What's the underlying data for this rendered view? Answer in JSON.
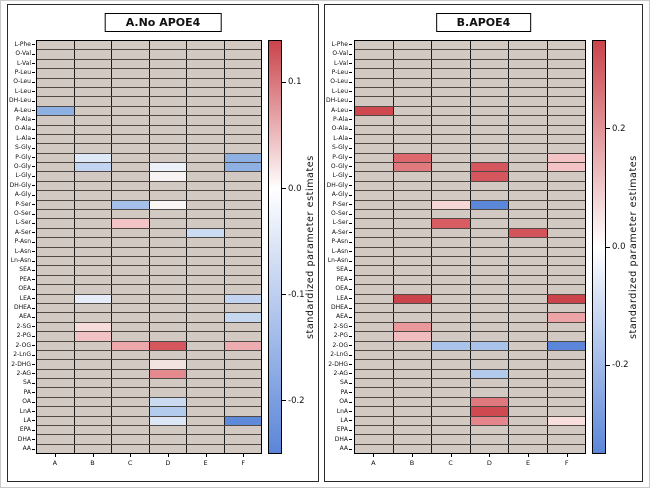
{
  "colors": {
    "cell_base": "#d2cac2",
    "strong_red": "#ca434b",
    "strong_blue": "#5b86d8",
    "grid_line": "#1c1c1c"
  },
  "chart_data": [
    {
      "type": "heatmap",
      "title": "A.No APOE4",
      "x_categories": [
        "A",
        "B",
        "C",
        "D",
        "E",
        "F"
      ],
      "y_categories": [
        "L-Phe",
        "O-Val",
        "L-Val",
        "P-Leu",
        "O-Leu",
        "L-Leu",
        "DH-Leu",
        "A-Leu",
        "P-Ala",
        "O-Ala",
        "L-Ala",
        "S-Gly",
        "P-Gly",
        "O-Gly",
        "L-Gly",
        "DH-Gly",
        "A-Gly",
        "P-Ser",
        "O-Ser",
        "L-Ser",
        "A-Ser",
        "P-Asn",
        "L-Asn",
        "Ln-Asn",
        "SEA",
        "PEA",
        "OEA",
        "LEA",
        "DHEA",
        "AEA",
        "2-SG",
        "2-PG",
        "2-OG",
        "2-LnG",
        "2-DHG",
        "2-AG",
        "SA",
        "PA",
        "OA",
        "LnA",
        "LA",
        "EPA",
        "DHA",
        "AA"
      ],
      "colorbar": {
        "label": "standardized parameter estimates",
        "ticks": [
          "0.1",
          "0.0",
          "-0.1",
          "-0.2"
        ],
        "tick_values": [
          0.1,
          0.0,
          -0.1,
          -0.2
        ],
        "vmax": 0.14,
        "vmin": -0.25
      },
      "default_value": 0.0,
      "cells": [
        {
          "row": "A-Leu",
          "col": "A",
          "value": -0.14,
          "color": "#8fb0e2"
        },
        {
          "row": "P-Gly",
          "col": "B",
          "value": -0.04,
          "color": "#dfe8f6"
        },
        {
          "row": "P-Gly",
          "col": "F",
          "value": -0.15,
          "color": "#8fb0e2"
        },
        {
          "row": "O-Gly",
          "col": "B",
          "value": -0.08,
          "color": "#c2d4ef"
        },
        {
          "row": "O-Gly",
          "col": "D",
          "value": -0.02,
          "color": "#ecf1f9"
        },
        {
          "row": "O-Gly",
          "col": "F",
          "value": -0.15,
          "color": "#8fb0e2"
        },
        {
          "row": "L-Gly",
          "col": "D",
          "value": 0.01,
          "color": "#f7f3f2"
        },
        {
          "row": "P-Ser",
          "col": "C",
          "value": -0.11,
          "color": "#a6c1e9"
        },
        {
          "row": "P-Ser",
          "col": "D",
          "value": 0.01,
          "color": "#faf6f5"
        },
        {
          "row": "L-Ser",
          "col": "C",
          "value": 0.05,
          "color": "#f2c4c5"
        },
        {
          "row": "A-Ser",
          "col": "E",
          "value": -0.07,
          "color": "#cbdbf2"
        },
        {
          "row": "LEA",
          "col": "B",
          "value": -0.03,
          "color": "#e6edf8"
        },
        {
          "row": "LEA",
          "col": "F",
          "value": -0.08,
          "color": "#c2d4ef"
        },
        {
          "row": "AEA",
          "col": "F",
          "value": -0.08,
          "color": "#c6d8f0"
        },
        {
          "row": "2-SG",
          "col": "B",
          "value": 0.03,
          "color": "#f6dbdb"
        },
        {
          "row": "2-PG",
          "col": "B",
          "value": 0.05,
          "color": "#f1c2c3"
        },
        {
          "row": "2-OG",
          "col": "C",
          "value": 0.07,
          "color": "#eba7aa"
        },
        {
          "row": "2-OG",
          "col": "D",
          "value": 0.13,
          "color": "#d6565d"
        },
        {
          "row": "2-OG",
          "col": "F",
          "value": 0.06,
          "color": "#edadb0"
        },
        {
          "row": "2-DHG",
          "col": "D",
          "value": 0.02,
          "color": "#f2e2e0"
        },
        {
          "row": "2-AG",
          "col": "D",
          "value": 0.09,
          "color": "#e4898e"
        },
        {
          "row": "OA",
          "col": "D",
          "value": -0.06,
          "color": "#c9daf1"
        },
        {
          "row": "LnA",
          "col": "D",
          "value": -0.09,
          "color": "#b3cbed"
        },
        {
          "row": "LA",
          "col": "D",
          "value": -0.04,
          "color": "#dce6f5"
        },
        {
          "row": "LA",
          "col": "F",
          "value": -0.22,
          "color": "#5f8ada"
        }
      ]
    },
    {
      "type": "heatmap",
      "title": "B.APOE4",
      "x_categories": [
        "A",
        "B",
        "C",
        "D",
        "E",
        "F"
      ],
      "y_categories": [
        "L-Phe",
        "O-Val",
        "L-Val",
        "P-Leu",
        "O-Leu",
        "L-Leu",
        "DH-Leu",
        "A-Leu",
        "P-Ala",
        "O-Ala",
        "L-Ala",
        "S-Gly",
        "P-Gly",
        "O-Gly",
        "L-Gly",
        "DH-Gly",
        "A-Gly",
        "P-Ser",
        "O-Ser",
        "L-Ser",
        "A-Ser",
        "P-Asn",
        "L-Asn",
        "Ln-Asn",
        "SEA",
        "PEA",
        "OEA",
        "LEA",
        "DHEA",
        "AEA",
        "2-SG",
        "2-PG",
        "2-OG",
        "2-LnG",
        "2-DHG",
        "2-AG",
        "SA",
        "PA",
        "OA",
        "LnA",
        "LA",
        "EPA",
        "DHA",
        "AA"
      ],
      "colorbar": {
        "label": "standardized parameter estimates",
        "ticks": [
          "0.2",
          "0.0",
          "-0.2"
        ],
        "tick_values": [
          0.2,
          0.0,
          -0.2
        ],
        "vmax": 0.35,
        "vmin": -0.35
      },
      "default_value": 0.0,
      "cells": [
        {
          "row": "A-Leu",
          "col": "A",
          "value": 0.3,
          "color": "#cf4950"
        },
        {
          "row": "P-Gly",
          "col": "B",
          "value": 0.24,
          "color": "#dc686e"
        },
        {
          "row": "P-Gly",
          "col": "F",
          "value": 0.1,
          "color": "#f3c3c5"
        },
        {
          "row": "O-Gly",
          "col": "B",
          "value": 0.2,
          "color": "#e07a7f"
        },
        {
          "row": "O-Gly",
          "col": "D",
          "value": 0.27,
          "color": "#d6565d"
        },
        {
          "row": "O-Gly",
          "col": "F",
          "value": 0.1,
          "color": "#f3c3c5"
        },
        {
          "row": "L-Gly",
          "col": "D",
          "value": 0.27,
          "color": "#d6565d"
        },
        {
          "row": "P-Ser",
          "col": "C",
          "value": 0.07,
          "color": "#f6d6d6"
        },
        {
          "row": "P-Ser",
          "col": "D",
          "value": -0.3,
          "color": "#5c88d9"
        },
        {
          "row": "L-Ser",
          "col": "C",
          "value": 0.26,
          "color": "#d75d63"
        },
        {
          "row": "A-Ser",
          "col": "E",
          "value": 0.28,
          "color": "#d4545b"
        },
        {
          "row": "LEA",
          "col": "B",
          "value": 0.31,
          "color": "#cb434b"
        },
        {
          "row": "LEA",
          "col": "F",
          "value": 0.31,
          "color": "#cb434b"
        },
        {
          "row": "AEA",
          "col": "F",
          "value": 0.14,
          "color": "#eda4a7"
        },
        {
          "row": "2-SG",
          "col": "B",
          "value": 0.17,
          "color": "#e9989c"
        },
        {
          "row": "2-PG",
          "col": "B",
          "value": 0.11,
          "color": "#f1bcbe"
        },
        {
          "row": "2-OG",
          "col": "C",
          "value": -0.15,
          "color": "#a9c3eb"
        },
        {
          "row": "2-OG",
          "col": "D",
          "value": -0.15,
          "color": "#a9c3eb"
        },
        {
          "row": "2-OG",
          "col": "F",
          "value": -0.28,
          "color": "#5c86d9"
        },
        {
          "row": "2-AG",
          "col": "D",
          "value": -0.13,
          "color": "#b2caec"
        },
        {
          "row": "OA",
          "col": "D",
          "value": 0.19,
          "color": "#e0797e"
        },
        {
          "row": "LnA",
          "col": "D",
          "value": 0.3,
          "color": "#cf4950"
        },
        {
          "row": "LA",
          "col": "D",
          "value": 0.17,
          "color": "#e4868b"
        },
        {
          "row": "LA",
          "col": "F",
          "value": 0.05,
          "color": "#f8dedd"
        }
      ]
    }
  ]
}
